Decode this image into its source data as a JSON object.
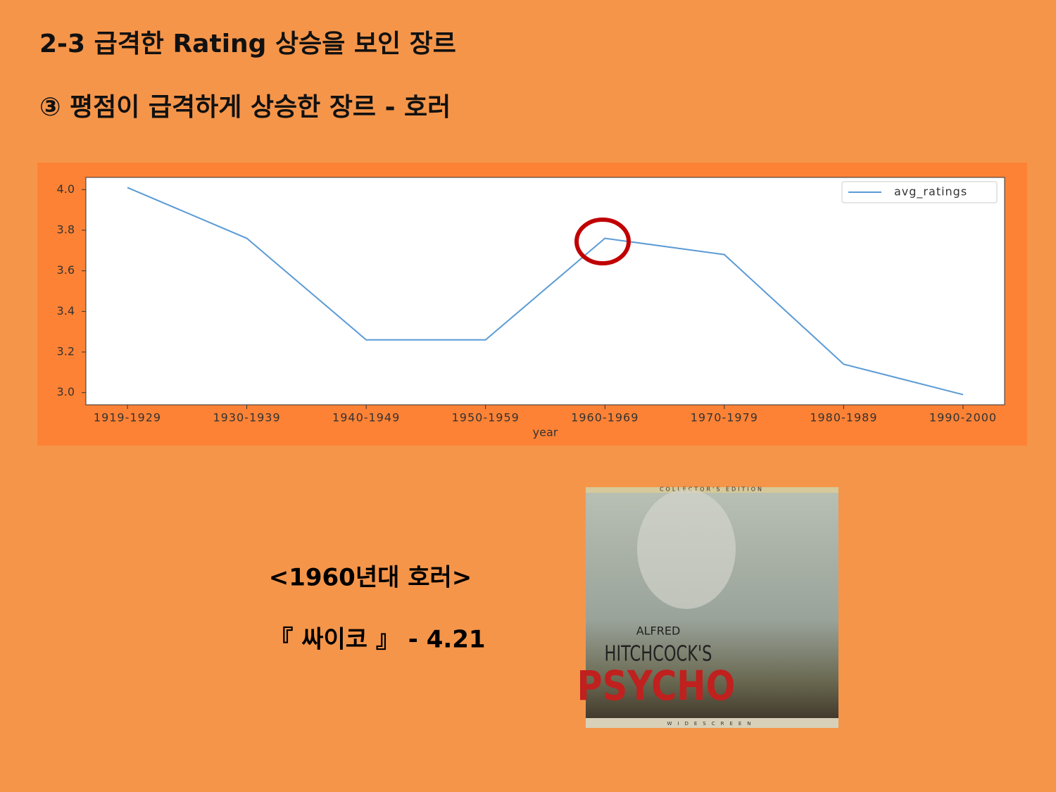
{
  "header": {
    "title": "2-3 급격한 Rating 상승을 보인 장르",
    "subtitle": "③ 평점이 급격하게 상승한 장르 - 호러"
  },
  "chart_data": {
    "type": "line",
    "categories": [
      "1919-1929",
      "1930-1939",
      "1940-1949",
      "1950-1959",
      "1960-1969",
      "1970-1979",
      "1980-1989",
      "1990-2000"
    ],
    "series": [
      {
        "name": "avg_ratings",
        "color": "#5b9bd5",
        "values": [
          4.01,
          3.76,
          3.26,
          3.26,
          3.76,
          3.68,
          3.14,
          2.99
        ]
      }
    ],
    "x_label": "year",
    "ylim": [
      2.94,
      4.06
    ],
    "yticks": [
      {
        "value": 3,
        "label": "3.0"
      },
      3.2,
      3.4,
      3.6,
      3.8,
      {
        "value": 4,
        "label": "4.0"
      }
    ],
    "legend": "upper right",
    "grid": false
  },
  "caption": {
    "heading": "<1960년대 호러>",
    "movie": "『 싸이코 』 -  4.21"
  },
  "poster": {
    "edition": "COLLECTOR'S EDITION",
    "director": "ALFRED",
    "credit": "HITCHCOCK'S",
    "title": "PSYCHO",
    "format": "WIDESCREEN"
  }
}
